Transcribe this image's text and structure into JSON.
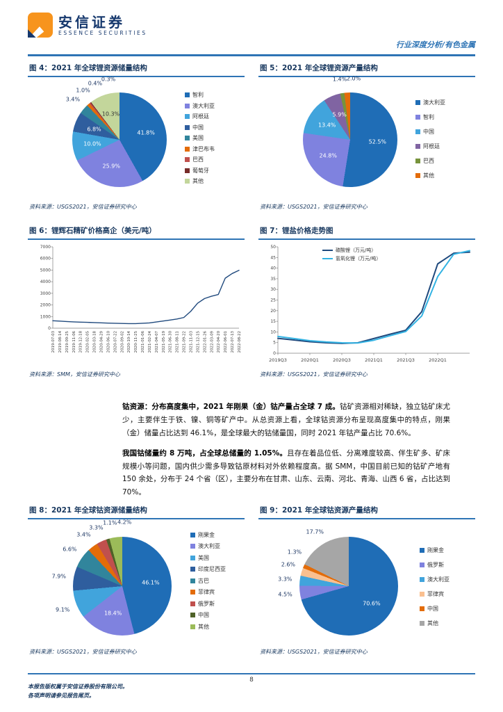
{
  "header": {
    "brand_cn": "安信证券",
    "brand_en": "ESSENCE SECURITIES",
    "doc_type": "行业深度分析/有色金属"
  },
  "paragraphs": {
    "p1_lead": "钴资源：分布高度集中，2021 年刚果（金）钴产量占全球 7 成。",
    "p1_body": "钴矿资源相对稀缺，独立钴矿床尤少，主要伴生于铁、镍、铜等矿产中。从总资源上看，全球钴资源分布呈现高度集中的特点，刚果（金）储量占比达到 46.1%，是全球最大的钴储量国，同时 2021 年钴产量占比 70.6%。",
    "p2_lead": "我国钴储量约 8 万吨，占全球总储量的 1.05%。",
    "p2_body": "且存在着品位低、分离难度较高、伴生矿多、矿床规模小等问题，国内供少需多导致钴原材料对外依赖程度高。据 SMM，中国目前已知的钴矿产地有 150 余处，分布于 24 个省（区），主要分布在甘肃、山东、云南、河北、青海、山西 6 省，占比达到 70%。"
  },
  "footer": {
    "line1": "本报告版权属于安信证券股份有限公司。",
    "line2": "各项声明请参见报告尾页。",
    "page": "8"
  },
  "chart_data": [
    {
      "id": "fig4",
      "type": "pie",
      "title": "图 4：2021 年全球锂资源储量结构",
      "source": "资料来源：USGS2021，安信证券研究中心",
      "categories": [
        "智利",
        "澳大利亚",
        "阿根廷",
        "中国",
        "美国",
        "津巴布韦",
        "巴西",
        "葡萄牙",
        "其他"
      ],
      "values": [
        41.8,
        25.9,
        10.0,
        6.8,
        3.4,
        1.0,
        0.4,
        0.3,
        10.3
      ],
      "colors": [
        "#1F6DB6",
        "#7F82DF",
        "#41A4DC",
        "#2F5E9E",
        "#31859C",
        "#E36C09",
        "#C0504D",
        "#772C2A",
        "#C3D69B"
      ],
      "inside_min": 5,
      "legend_position": "right"
    },
    {
      "id": "fig5",
      "type": "pie",
      "title": "图 5：2021 年全球锂资源产量结构",
      "source": "资料来源：USGS2021，安信证券研究中心",
      "categories": [
        "澳大利亚",
        "智利",
        "中国",
        "阿根廷",
        "巴西",
        "其他"
      ],
      "values": [
        52.5,
        24.8,
        13.4,
        5.9,
        1.4,
        2.0
      ],
      "colors": [
        "#1F6DB6",
        "#7F82DF",
        "#41A4DC",
        "#8064A2",
        "#77933C",
        "#E36C09"
      ],
      "inside_min": 5,
      "legend_position": "right"
    },
    {
      "id": "fig6",
      "type": "line",
      "title": "图 6：锂辉石精矿价格高企（美元/吨）",
      "source": "资料来源：SMM，安信证券研究中心",
      "x": [
        "2019-07-03",
        "2019-08-14",
        "2019-09-25",
        "2019-11-06",
        "2019-12-18",
        "2020-02-05",
        "2020-03-18",
        "2020-04-29",
        "2020-06-10",
        "2020-07-22",
        "2020-09-02",
        "2020-10-14",
        "2020-11-25",
        "2021-01-06",
        "2021-02-24",
        "2021-04-07",
        "2021-05-19",
        "2021-06-30",
        "2021-08-11",
        "2021-09-22",
        "2021-11-03",
        "2021-12-15",
        "2022-01-26",
        "2022-03-09",
        "2022-04-20",
        "2022-06-01",
        "2022-07-13",
        "2022-08-22"
      ],
      "series": [
        {
          "name": "锂辉石精矿价格",
          "color": "#1F497D",
          "values": [
            640,
            610,
            575,
            545,
            520,
            505,
            480,
            460,
            440,
            420,
            405,
            390,
            395,
            420,
            455,
            535,
            620,
            700,
            790,
            920,
            1450,
            2150,
            2550,
            2750,
            2900,
            4300,
            4700,
            4980
          ]
        }
      ],
      "ylim": [
        0,
        7000
      ],
      "ytick_step": 1000,
      "xlabel_rotate": true,
      "grid": false,
      "legend_show": false
    },
    {
      "id": "fig7",
      "type": "line",
      "title": "图 7：锂盐价格走势图",
      "source": "资料来源：USGS2021，安信证券研究中心",
      "x": [
        "2019Q3",
        "2019Q4",
        "2020Q1",
        "2020Q2",
        "2020Q3",
        "2020Q4",
        "2021Q1",
        "2021Q2",
        "2021Q3",
        "2021Q4",
        "2022Q1",
        "2022Q2",
        "2022Q3"
      ],
      "series": [
        {
          "name": "碳酸锂（万元/吨）",
          "color": "#1F497D",
          "values": [
            7.0,
            6.2,
            5.4,
            4.9,
            4.6,
            4.9,
            6.9,
            8.9,
            10.8,
            19.5,
            42.0,
            47.0,
            47.5
          ]
        },
        {
          "name": "氢氧化锂（万元/吨）",
          "color": "#33B3E3",
          "values": [
            7.9,
            6.9,
            5.9,
            5.3,
            4.9,
            4.8,
            6.1,
            8.2,
            10.2,
            17.5,
            36.0,
            46.5,
            48.2
          ]
        }
      ],
      "ylim": [
        0,
        50
      ],
      "ytick_step": 5,
      "xtick_labels": [
        "2019Q3",
        "2020Q1",
        "2020Q3",
        "2021Q1",
        "2021Q3",
        "2022Q1"
      ],
      "xtick_indices": [
        0,
        2,
        4,
        6,
        8,
        10
      ],
      "xlabel_rotate": false,
      "grid": false,
      "legend_show": true
    },
    {
      "id": "fig8",
      "type": "pie",
      "title": "图 8：2021 年全球钴资源储量结构",
      "source": "资料来源：USGS2021，安信证券研究中心",
      "categories": [
        "刚果金",
        "澳大利亚",
        "美国",
        "印度尼西亚",
        "古巴",
        "菲律宾",
        "俄罗斯",
        "中国",
        "其他"
      ],
      "values": [
        46.1,
        18.4,
        9.1,
        7.9,
        6.6,
        3.4,
        3.3,
        1.1,
        4.2
      ],
      "colors": [
        "#1F6DB6",
        "#7F82DF",
        "#41A4DC",
        "#2F5E9E",
        "#31859C",
        "#E36C09",
        "#C0504D",
        "#4F6228",
        "#9BBB59"
      ],
      "inside_min": 12,
      "legend_position": "right"
    },
    {
      "id": "fig9",
      "type": "pie",
      "title": "图 9：2021 年全球钴资源产量结构",
      "source": "资料来源：USGS2021，安信证券研究中心",
      "categories": [
        "刚果金",
        "俄罗斯",
        "澳大利亚",
        "菲律宾",
        "中国",
        "其他"
      ],
      "values": [
        70.6,
        4.5,
        3.3,
        2.6,
        1.3,
        17.7
      ],
      "colors": [
        "#1F6DB6",
        "#7F82DF",
        "#41A4DC",
        "#FAC090",
        "#E36C09",
        "#A6A6A6"
      ],
      "inside_min": 60,
      "legend_position": "right"
    }
  ]
}
